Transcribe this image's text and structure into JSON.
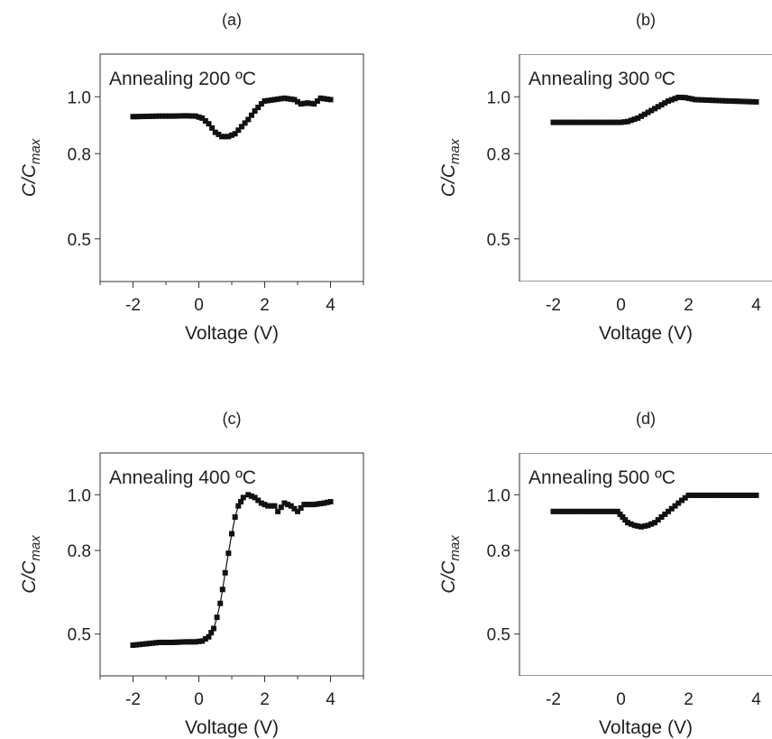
{
  "chart_data": [
    {
      "type": "scatter",
      "panel": "(a)",
      "annotation": "Annealing 200 ºC",
      "xlabel": "Voltage (V)",
      "ylabel_main": "C/C",
      "ylabel_sub": "max",
      "xlim": [
        -3,
        5
      ],
      "ylim": [
        0.35,
        1.15
      ],
      "xticks": [
        -2,
        0,
        2,
        4
      ],
      "yticks": [
        0.5,
        0.8,
        1.0
      ],
      "ytick_labels": [
        "0.5",
        "0.8",
        "1.0"
      ],
      "connected": false,
      "points": [
        [
          -2.0,
          0.93
        ],
        [
          -1.6,
          0.931
        ],
        [
          -1.2,
          0.932
        ],
        [
          -0.8,
          0.932
        ],
        [
          -0.4,
          0.933
        ],
        [
          -0.1,
          0.932
        ],
        [
          0.1,
          0.925
        ],
        [
          0.3,
          0.905
        ],
        [
          0.5,
          0.875
        ],
        [
          0.7,
          0.86
        ],
        [
          0.9,
          0.86
        ],
        [
          1.1,
          0.87
        ],
        [
          1.3,
          0.895
        ],
        [
          1.5,
          0.92
        ],
        [
          1.7,
          0.95
        ],
        [
          1.9,
          0.975
        ],
        [
          2.0,
          0.985
        ],
        [
          2.3,
          0.99
        ],
        [
          2.6,
          0.995
        ],
        [
          2.9,
          0.99
        ],
        [
          3.1,
          0.975
        ],
        [
          3.3,
          0.978
        ],
        [
          3.5,
          0.975
        ],
        [
          3.7,
          0.995
        ],
        [
          4.0,
          0.99
        ]
      ]
    },
    {
      "type": "line",
      "panel": "(b)",
      "annotation": "Annealing 300 ºC",
      "xlabel": "Voltage (V)",
      "ylabel_main": "C/C",
      "ylabel_sub": "max",
      "xlim": [
        -3,
        5
      ],
      "ylim": [
        0.35,
        1.15
      ],
      "xticks": [
        -2,
        0,
        2,
        4
      ],
      "yticks": [
        0.5,
        0.8,
        1.0
      ],
      "ytick_labels": [
        "0.5",
        "0.8",
        "1.0"
      ],
      "connected": true,
      "points": [
        [
          -2.0,
          0.91
        ],
        [
          -1.0,
          0.91
        ],
        [
          0.0,
          0.91
        ],
        [
          0.2,
          0.913
        ],
        [
          0.5,
          0.925
        ],
        [
          0.8,
          0.945
        ],
        [
          1.1,
          0.965
        ],
        [
          1.4,
          0.985
        ],
        [
          1.7,
          0.998
        ],
        [
          1.9,
          0.997
        ],
        [
          2.2,
          0.99
        ],
        [
          2.6,
          0.988
        ],
        [
          3.0,
          0.986
        ],
        [
          3.5,
          0.984
        ],
        [
          4.0,
          0.982
        ]
      ]
    },
    {
      "type": "line",
      "panel": "(c)",
      "annotation": "Annealing 400 ºC",
      "xlabel": "Voltage (V)",
      "ylabel_main": "C/C",
      "ylabel_sub": "max",
      "xlim": [
        -3,
        5
      ],
      "ylim": [
        0.35,
        1.15
      ],
      "xticks": [
        -2,
        0,
        2,
        4
      ],
      "yticks": [
        0.5,
        0.8,
        1.0
      ],
      "ytick_labels": [
        "0.5",
        "0.8",
        "1.0"
      ],
      "connected": true,
      "points": [
        [
          -2.0,
          0.46
        ],
        [
          -1.6,
          0.465
        ],
        [
          -1.2,
          0.47
        ],
        [
          -0.8,
          0.47
        ],
        [
          -0.4,
          0.472
        ],
        [
          -0.1,
          0.472
        ],
        [
          0.1,
          0.475
        ],
        [
          0.3,
          0.49
        ],
        [
          0.45,
          0.52
        ],
        [
          0.55,
          0.56
        ],
        [
          0.65,
          0.61
        ],
        [
          0.72,
          0.66
        ],
        [
          0.8,
          0.72
        ],
        [
          0.9,
          0.79
        ],
        [
          1.0,
          0.86
        ],
        [
          1.1,
          0.92
        ],
        [
          1.2,
          0.96
        ],
        [
          1.35,
          0.99
        ],
        [
          1.5,
          1.0
        ],
        [
          1.7,
          0.99
        ],
        [
          1.9,
          0.97
        ],
        [
          2.1,
          0.96
        ],
        [
          2.3,
          0.96
        ],
        [
          2.4,
          0.94
        ],
        [
          2.6,
          0.97
        ],
        [
          2.8,
          0.96
        ],
        [
          3.0,
          0.94
        ],
        [
          3.2,
          0.965
        ],
        [
          3.5,
          0.965
        ],
        [
          3.8,
          0.97
        ],
        [
          4.0,
          0.975
        ]
      ]
    },
    {
      "type": "scatter",
      "panel": "(d)",
      "annotation": "Annealing 500 ºC",
      "xlabel": "Voltage (V)",
      "ylabel_main": "C/C",
      "ylabel_sub": "max",
      "xlim": [
        -3,
        5
      ],
      "ylim": [
        0.35,
        1.15
      ],
      "xticks": [
        -2,
        0,
        2,
        4
      ],
      "yticks": [
        0.5,
        0.8,
        1.0
      ],
      "ytick_labels": [
        "0.5",
        "0.8",
        "1.0"
      ],
      "connected": false,
      "points": [
        [
          -2.0,
          0.94
        ],
        [
          -1.5,
          0.94
        ],
        [
          -1.0,
          0.94
        ],
        [
          -0.5,
          0.94
        ],
        [
          -0.1,
          0.94
        ],
        [
          0.05,
          0.92
        ],
        [
          0.2,
          0.9
        ],
        [
          0.4,
          0.89
        ],
        [
          0.6,
          0.885
        ],
        [
          0.8,
          0.89
        ],
        [
          1.0,
          0.9
        ],
        [
          1.2,
          0.92
        ],
        [
          1.4,
          0.94
        ],
        [
          1.6,
          0.96
        ],
        [
          1.8,
          0.98
        ],
        [
          2.0,
          0.998
        ],
        [
          2.5,
          0.998
        ],
        [
          3.0,
          0.998
        ],
        [
          3.5,
          0.998
        ],
        [
          4.0,
          0.998
        ]
      ]
    }
  ]
}
